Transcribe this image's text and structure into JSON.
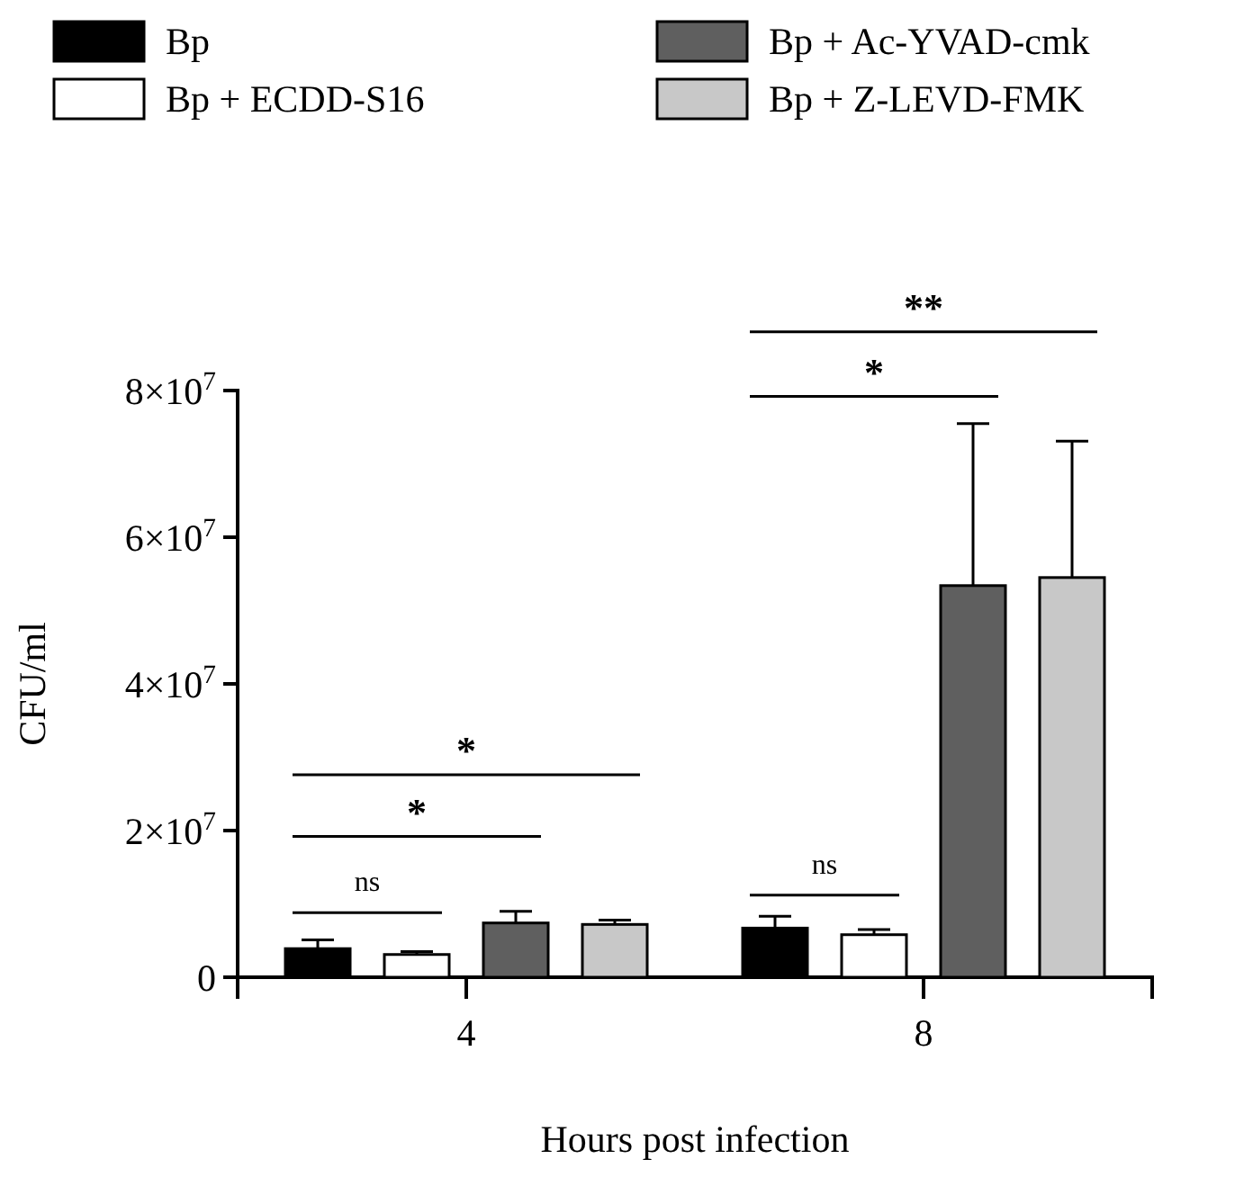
{
  "chart_data": {
    "type": "bar",
    "categories": [
      "4",
      "8"
    ],
    "xlabel": "Hours post infection",
    "ylabel": "CFU/ml",
    "ylim": [
      0,
      80000000
    ],
    "yticks": [
      0,
      {
        "value": 20000000,
        "label": "2×10$^{7}$"
      },
      {
        "value": 40000000,
        "label": "4×10$^{7}$"
      },
      {
        "value": 60000000,
        "label": "6×10$^{7}$"
      },
      {
        "value": 80000000,
        "label": "8×10$^{7}$"
      }
    ],
    "series": [
      {
        "name": "Bp",
        "color": "#000000",
        "values": [
          3900000,
          6700000
        ],
        "errors": [
          1200000,
          1600000
        ]
      },
      {
        "name": "Bp + ECDD-S16",
        "color": "#ffffff",
        "values": [
          3100000,
          5800000
        ],
        "errors": [
          400000,
          700000
        ]
      },
      {
        "name": "Bp + Ac-YVAD-cmk",
        "color": "#5f5f5f",
        "values": [
          7400000,
          53400000
        ],
        "errors": [
          1600000,
          22100000
        ]
      },
      {
        "name": "Bp + Z-LEVD-FMK",
        "color": "#c8c8c8",
        "values": [
          7200000,
          54500000
        ],
        "errors": [
          600000,
          18600000
        ]
      }
    ],
    "annotations": [
      "ns",
      "*",
      "*",
      "ns",
      "*",
      "**"
    ],
    "legend": "top",
    "grid": false
  }
}
